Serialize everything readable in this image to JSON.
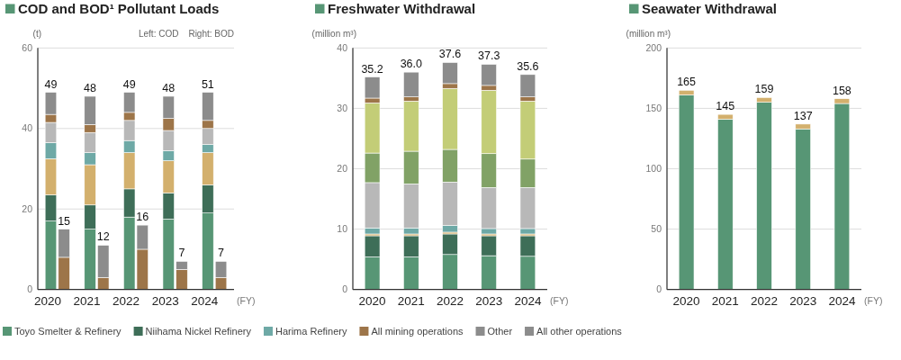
{
  "chart_data": [
    {
      "type": "bar",
      "title": "COD and BOD¹ Pollutant Loads",
      "ylabel": "(t)",
      "xlabel": "(FY)",
      "annotations": [
        "Left: COD",
        "Right: BOD"
      ],
      "categories": [
        "2020",
        null,
        "2021",
        null,
        "2022",
        null,
        "2023",
        null,
        "2024",
        null
      ],
      "stacked": true,
      "ylim": [
        0,
        60
      ],
      "yticks": [
        0,
        20,
        40,
        60
      ],
      "grid": "y",
      "legend": "bottom",
      "series": [
        {
          "name": "Toyo Smelter & Refinery",
          "color": "#579675",
          "values": [
            17,
            null,
            15,
            null,
            18,
            null,
            17.5,
            null,
            19,
            null
          ]
        },
        {
          "name": "Niihama Nickel Refinery",
          "color": "#3e6e58",
          "values": [
            6.5,
            null,
            6,
            null,
            7,
            null,
            6.5,
            null,
            7,
            null
          ]
        },
        {
          "color": "#d3b06d",
          "values": [
            9,
            null,
            10,
            null,
            9,
            null,
            8,
            null,
            8,
            null
          ]
        },
        {
          "name": "Harima Refinery",
          "color": "#6ea9a6",
          "values": [
            4,
            null,
            3,
            null,
            3,
            null,
            2.5,
            null,
            2,
            null
          ]
        },
        {
          "color": "#b8b8b8",
          "values": [
            5,
            null,
            5,
            null,
            5,
            null,
            5,
            null,
            4,
            null
          ]
        },
        {
          "name": "All mining operations",
          "color": "#9d7549",
          "values": [
            2,
            8,
            2,
            3,
            2,
            10,
            3,
            5,
            2,
            3
          ]
        },
        {
          "name": "Other",
          "color": "#8c8c8c",
          "values": [
            5.5,
            null,
            7,
            null,
            5,
            null,
            5.5,
            null,
            7,
            null
          ]
        },
        {
          "name": "All other operations",
          "color": "#8c8c8c",
          "values": [
            null,
            7,
            null,
            8,
            null,
            6,
            null,
            2,
            null,
            4
          ]
        }
      ],
      "totals": [
        "49",
        "15",
        "48",
        "12",
        "49",
        "16",
        "48",
        "7",
        "51",
        "7"
      ]
    },
    {
      "type": "bar",
      "title": "Freshwater Withdrawal",
      "ylabel": "(million m³)",
      "xlabel": "(FY)",
      "categories": [
        "2020",
        "2021",
        "2022",
        "2023",
        "2024"
      ],
      "stacked": true,
      "ylim": [
        0,
        40
      ],
      "yticks": [
        0,
        10,
        20,
        30,
        40
      ],
      "grid": "y",
      "legend": "bottom",
      "series": [
        {
          "name": "Toyo Smelter & Refinery",
          "color": "#579675",
          "values": [
            5.4,
            5.4,
            5.8,
            5.6,
            5.5
          ]
        },
        {
          "name": "Niihama Nickel Refinery",
          "color": "#3e6e58",
          "values": [
            3.5,
            3.5,
            3.4,
            3.3,
            3.4
          ]
        },
        {
          "color": "#d3b06d",
          "values": [
            0.3,
            0.3,
            0.3,
            0.3,
            0.3
          ]
        },
        {
          "name": "Harima Refinery",
          "color": "#6ea9a6",
          "values": [
            1.0,
            1.0,
            1.1,
            0.9,
            0.9
          ]
        },
        {
          "color": "#b8b8b8",
          "values": [
            7.5,
            7.3,
            7.2,
            6.8,
            6.8
          ]
        },
        {
          "color": "#81a266",
          "values": [
            4.9,
            5.4,
            5.4,
            5.6,
            4.7
          ]
        },
        {
          "color": "#c3cd77",
          "values": [
            8.3,
            8.3,
            10.1,
            10.5,
            9.6
          ]
        },
        {
          "name": "All mining operations",
          "color": "#9d7549",
          "values": [
            0.8,
            0.7,
            0.8,
            0.8,
            0.7
          ]
        },
        {
          "name": "Other",
          "color": "#8c8c8c",
          "values": [
            3.5,
            4.1,
            3.5,
            3.5,
            3.7
          ]
        }
      ],
      "totals": [
        "35.2",
        "36.0",
        "37.6",
        "37.3",
        "35.6"
      ]
    },
    {
      "type": "bar",
      "title": "Seawater Withdrawal",
      "ylabel": "(million m³)",
      "xlabel": "(FY)",
      "categories": [
        "2020",
        "2021",
        "2022",
        "2023",
        "2024"
      ],
      "stacked": true,
      "ylim": [
        0,
        200
      ],
      "yticks": [
        0,
        50,
        100,
        150,
        200
      ],
      "grid": "y",
      "legend": "bottom",
      "series": [
        {
          "name": "Toyo Smelter & Refinery",
          "color": "#579675",
          "values": [
            161,
            141,
            155,
            133,
            154
          ]
        },
        {
          "color": "#d3b06d",
          "values": [
            4,
            4,
            4,
            4,
            4
          ]
        }
      ],
      "totals": [
        "165",
        "145",
        "159",
        "137",
        "158"
      ]
    }
  ]
}
